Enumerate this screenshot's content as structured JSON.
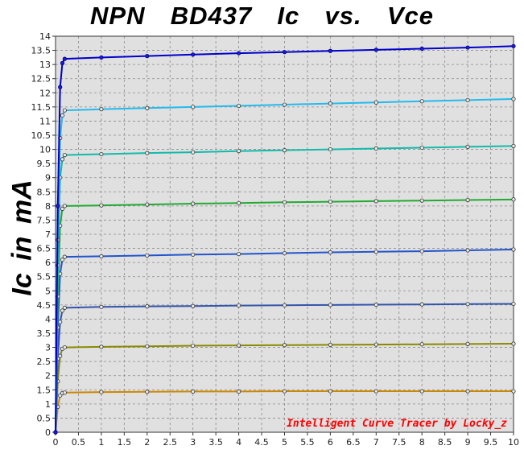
{
  "title": "NPN  BD437  Ic  vs.  Vce",
  "ylabel": "Ic in mA",
  "watermark": "Intelligent Curve Tracer by Locky_z",
  "colors": {
    "plot_background": "#e0e0e0",
    "grid": "#8a8a8a",
    "watermark": "#ff0000",
    "marker_edge": "#333333",
    "marker_fill": "#e8e8e8",
    "top_curve": "#0000cc"
  },
  "chart_data": {
    "type": "line",
    "title": "NPN  BD437  Ic  vs.  Vce",
    "xlabel": "",
    "ylabel": "Ic in mA",
    "xlim": [
      0,
      10
    ],
    "ylim": [
      0,
      14
    ],
    "x_ticks": [
      "0",
      "0.5",
      "1",
      "1.5",
      "2",
      "2.5",
      "3",
      "3.5",
      "4",
      "4.5",
      "5",
      "5.5",
      "6",
      "6.5",
      "7",
      "7.5",
      "8",
      "8.5",
      "9",
      "9.5",
      "10"
    ],
    "y_ticks": [
      "0",
      "0.5",
      "1",
      "1.5",
      "2",
      "2.5",
      "3",
      "3.5",
      "4",
      "4.5",
      "5",
      "5.5",
      "6",
      "6.5",
      "7",
      "7.5",
      "8",
      "8.5",
      "9",
      "9.5",
      "10",
      "10.5",
      "11",
      "11.5",
      "12",
      "12.5",
      "13",
      "13.5",
      "14"
    ],
    "grid": true,
    "marker": "circle",
    "series": [
      {
        "color": "#cc8800",
        "x": [
          0,
          0.05,
          0.1,
          0.15,
          0.2,
          1,
          2,
          3,
          4,
          5,
          6,
          7,
          8,
          9,
          10
        ],
        "y": [
          0,
          0.9,
          1.3,
          1.38,
          1.4,
          1.42,
          1.43,
          1.44,
          1.44,
          1.45,
          1.45,
          1.45,
          1.45,
          1.45,
          1.45
        ]
      },
      {
        "color": "#8a8a00",
        "x": [
          0,
          0.05,
          0.1,
          0.15,
          0.2,
          1,
          2,
          3,
          4,
          5,
          6,
          7,
          8,
          9,
          10
        ],
        "y": [
          0,
          1.8,
          2.7,
          2.95,
          3.0,
          3.02,
          3.04,
          3.06,
          3.07,
          3.08,
          3.09,
          3.1,
          3.11,
          3.12,
          3.13
        ]
      },
      {
        "color": "#3355aa",
        "x": [
          0,
          0.05,
          0.1,
          0.15,
          0.2,
          1,
          2,
          3,
          4,
          5,
          6,
          7,
          8,
          9,
          10
        ],
        "y": [
          0,
          2.6,
          3.9,
          4.3,
          4.4,
          4.43,
          4.45,
          4.46,
          4.48,
          4.49,
          4.5,
          4.51,
          4.52,
          4.53,
          4.54
        ]
      },
      {
        "color": "#2255cc",
        "x": [
          0,
          0.05,
          0.1,
          0.15,
          0.2,
          1,
          2,
          3,
          4,
          5,
          6,
          7,
          8,
          9,
          10
        ],
        "y": [
          0,
          3.7,
          5.6,
          6.1,
          6.2,
          6.22,
          6.25,
          6.28,
          6.3,
          6.33,
          6.36,
          6.38,
          6.4,
          6.43,
          6.46
        ]
      },
      {
        "color": "#22aa33",
        "x": [
          0,
          0.05,
          0.1,
          0.15,
          0.2,
          1,
          2,
          3,
          4,
          5,
          6,
          7,
          8,
          9,
          10
        ],
        "y": [
          0,
          4.8,
          7.3,
          7.9,
          8.0,
          8.02,
          8.05,
          8.08,
          8.1,
          8.13,
          8.15,
          8.17,
          8.19,
          8.21,
          8.23
        ]
      },
      {
        "color": "#11bbaa",
        "x": [
          0,
          0.05,
          0.1,
          0.15,
          0.2,
          1,
          2,
          3,
          4,
          5,
          6,
          7,
          8,
          9,
          10
        ],
        "y": [
          0,
          5.9,
          9.0,
          9.65,
          9.8,
          9.83,
          9.87,
          9.9,
          9.94,
          9.97,
          10.0,
          10.03,
          10.06,
          10.09,
          10.12
        ]
      },
      {
        "color": "#22bbee",
        "x": [
          0,
          0.05,
          0.1,
          0.15,
          0.2,
          1,
          2,
          3,
          4,
          5,
          6,
          7,
          8,
          9,
          10
        ],
        "y": [
          0,
          6.8,
          10.4,
          11.2,
          11.38,
          11.42,
          11.46,
          11.5,
          11.54,
          11.58,
          11.62,
          11.66,
          11.7,
          11.74,
          11.78
        ]
      },
      {
        "color": "#0000cc",
        "x": [
          0,
          0.05,
          0.1,
          0.15,
          0.2,
          1,
          2,
          3,
          4,
          5,
          6,
          7,
          8,
          9,
          10
        ],
        "y": [
          0,
          8.0,
          12.2,
          13.05,
          13.2,
          13.25,
          13.3,
          13.35,
          13.4,
          13.44,
          13.48,
          13.52,
          13.56,
          13.6,
          13.65
        ]
      }
    ]
  }
}
